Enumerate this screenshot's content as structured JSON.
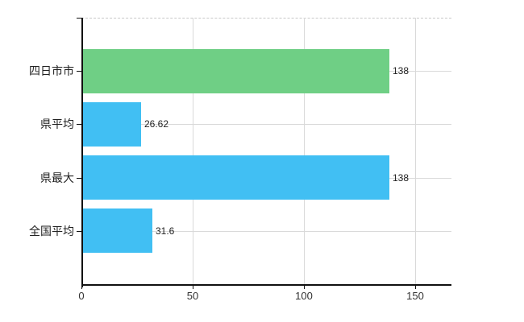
{
  "chart_data": {
    "type": "bar",
    "orientation": "horizontal",
    "title": "",
    "categories": [
      "四日市市",
      "県平均",
      "県最大",
      "全国平均"
    ],
    "values": [
      138,
      26.62,
      138,
      31.6
    ],
    "value_labels": [
      "138",
      "26.62",
      "138",
      "31.6"
    ],
    "bar_colors": [
      "#6fcf85",
      "#41bff3",
      "#41bff3",
      "#41bff3"
    ],
    "xlim": [
      0,
      166.3
    ],
    "xticks": [
      0,
      50,
      100,
      150
    ],
    "xtick_labels": [
      "0",
      "50",
      "100",
      "150"
    ],
    "grid": true,
    "grid_style": "horizontal lines at category centers, vertical lines at ticks, dashed top border",
    "legend": false
  },
  "colors": {
    "gridline": "#d9d9d9",
    "top_border": "#c8c8c8",
    "axis": "#111111",
    "tick_label": "#333333",
    "category_label": "#222222",
    "value_label": "#222222",
    "background": "#ffffff"
  }
}
